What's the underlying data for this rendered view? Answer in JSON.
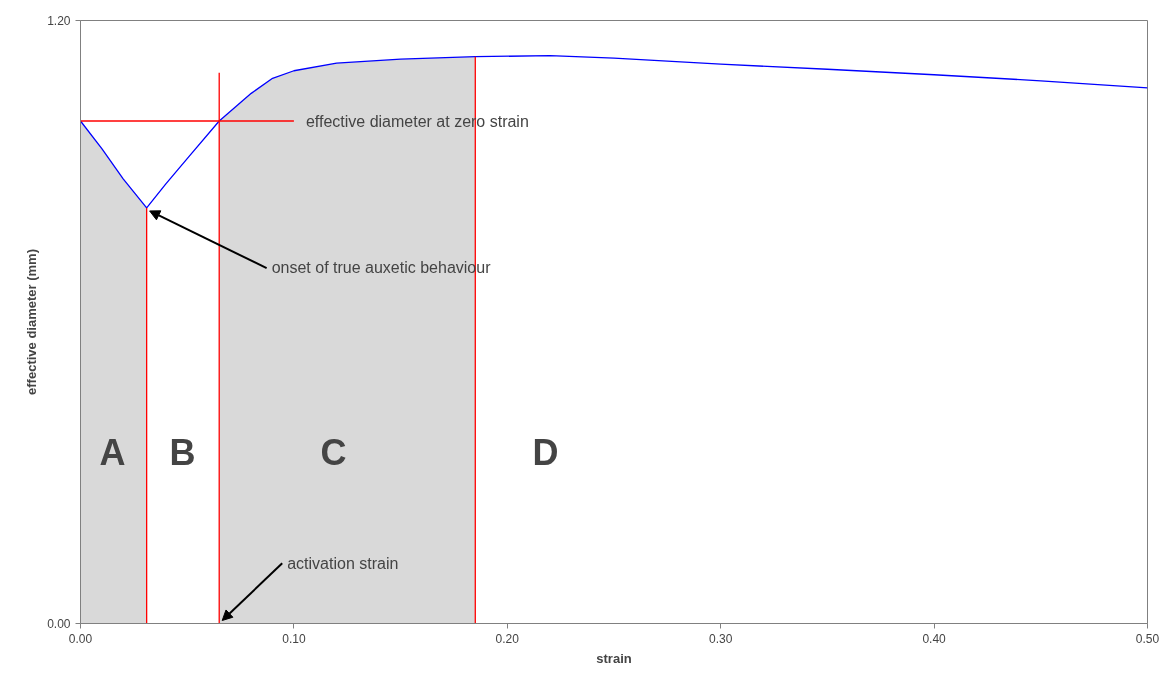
{
  "chart_data": {
    "type": "line",
    "xlabel": "strain",
    "ylabel": "effective diameter (mm)",
    "xlim": [
      0,
      0.5
    ],
    "ylim": [
      0,
      1.2
    ],
    "xticks": [
      {
        "value": 0,
        "label": "0.00"
      },
      {
        "value": 0.1,
        "label": "0.10"
      },
      {
        "value": 0.2,
        "label": "0.20"
      },
      {
        "value": 0.3,
        "label": "0.30"
      },
      {
        "value": 0.4,
        "label": "0.40"
      },
      {
        "value": 0.5,
        "label": "0.50"
      }
    ],
    "yticks": [
      {
        "value": 0,
        "label": "0.00"
      },
      {
        "value": 1.2,
        "label": "1.20"
      }
    ],
    "grid": false,
    "marker": "none",
    "line_style": "solid",
    "series": [
      {
        "color": "#0000ff",
        "x": [
          0,
          0.01,
          0.02,
          0.031,
          0.04,
          0.05,
          0.065,
          0.08,
          0.09,
          0.1,
          0.12,
          0.15,
          0.185,
          0.22,
          0.25,
          0.3,
          0.35,
          0.4,
          0.45,
          0.5
        ],
        "values": [
          1.0,
          0.945,
          0.885,
          0.827,
          0.875,
          0.925,
          1.0,
          1.055,
          1.085,
          1.1,
          1.115,
          1.123,
          1.128,
          1.13,
          1.125,
          1.113,
          1.103,
          1.092,
          1.08,
          1.066
        ]
      },
      {
        "color": "#ff0000",
        "x": [
          0,
          0.1
        ],
        "values": [
          1.0,
          1.0
        ]
      },
      {
        "color": "#ff0000",
        "x": [
          0.031,
          0.031
        ],
        "values": [
          0,
          0.827
        ]
      },
      {
        "color": "#ff0000",
        "x": [
          0.065,
          0.065
        ],
        "values": [
          0,
          1.096
        ]
      },
      {
        "color": "#ff0000",
        "x": [
          0.185,
          0.185
        ],
        "values": [
          0,
          1.128
        ]
      }
    ],
    "bands": [
      {
        "axis": "x",
        "from": 0,
        "to": 0.031,
        "color": "#d9d9d9"
      },
      {
        "axis": "x",
        "from": 0.065,
        "to": 0.185,
        "color": "#d9d9d9"
      }
    ],
    "annotations": [
      {
        "text": "effective diameter at zero strain",
        "x": 0.1,
        "y": 1.0
      },
      {
        "text": "onset of true auxetic behaviour",
        "x": 0.031,
        "y": 0.827
      },
      {
        "text": "activation strain",
        "x": 0.065,
        "y": 0
      },
      "A",
      "B",
      "C",
      "D"
    ]
  }
}
